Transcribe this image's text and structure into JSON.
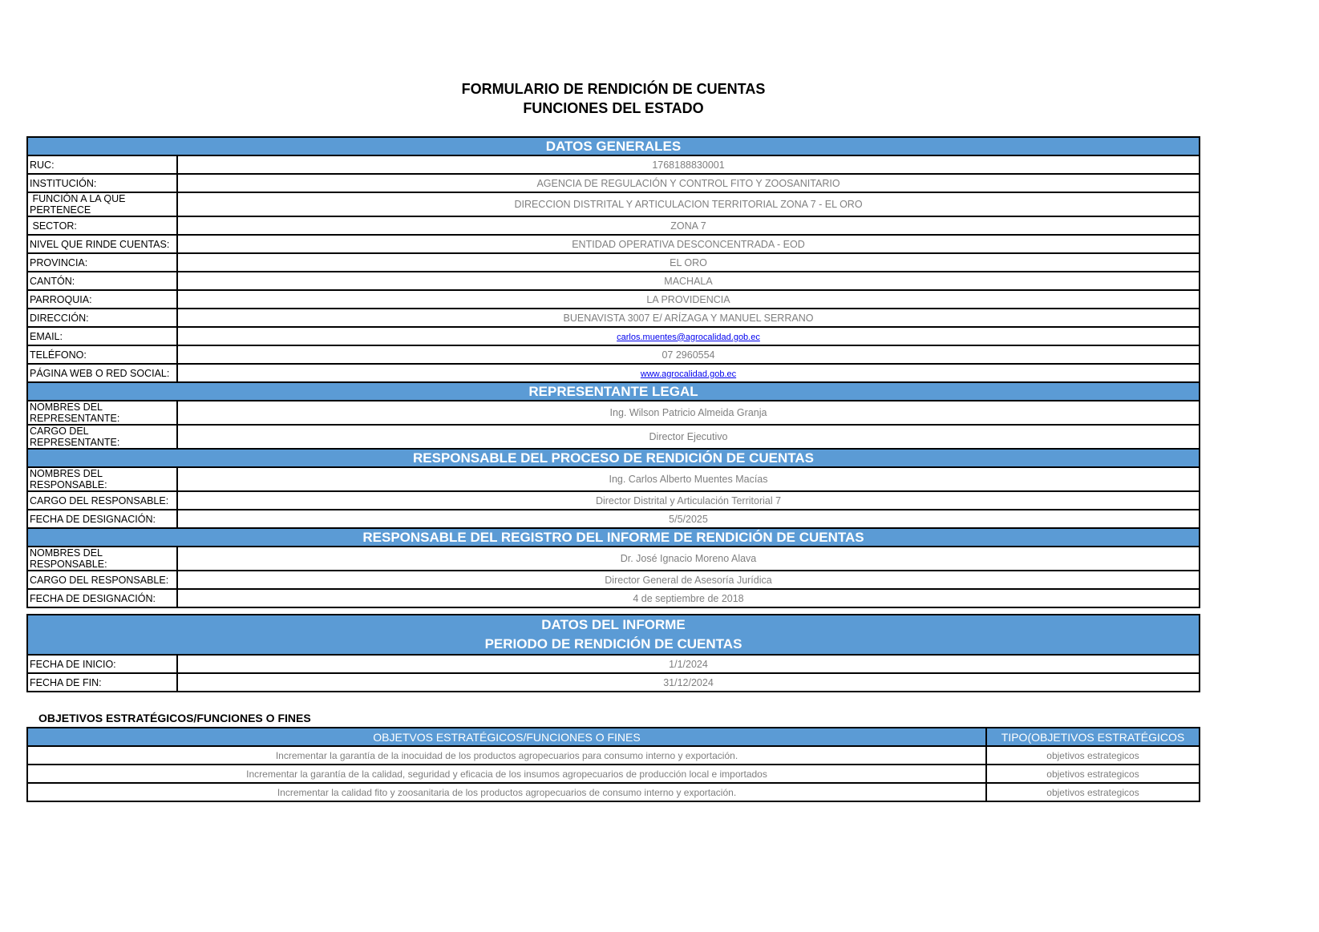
{
  "title": [
    "FORMULARIO DE RENDICIÓN DE CUENTAS",
    "FUNCIONES DEL ESTADO"
  ],
  "datos_generales": {
    "header": "DATOS GENERALES",
    "rows": [
      {
        "label": "RUC:",
        "value": "1768188830001"
      },
      {
        "label": "INSTITUCIÓN:",
        "value": "AGENCIA DE REGULACIÓN Y CONTROL FITO Y ZOOSANITARIO"
      },
      {
        "label": " FUNCIÓN A LA QUE PERTENECE",
        "value": "DIRECCION DISTRITAL Y ARTICULACION TERRITORIAL ZONA 7  - EL ORO"
      },
      {
        "label": " SECTOR:",
        "value": "ZONA 7"
      },
      {
        "label": "NIVEL QUE RINDE CUENTAS:",
        "value": "ENTIDAD OPERATIVA DESCONCENTRADA - EOD"
      },
      {
        "label": "PROVINCIA:",
        "value": "EL ORO"
      },
      {
        "label": "CANTÓN:",
        "value": "MACHALA"
      },
      {
        "label": "PARROQUIA:",
        "value": "LA PROVIDENCIA"
      },
      {
        "label": "DIRECCIÓN:",
        "value": "BUENAVISTA 3007 E/ ARÍZAGA Y MANUEL SERRANO"
      },
      {
        "label": "EMAIL:",
        "value": "carlos.muentes@agrocalidad.gob.ec"
      },
      {
        "label": "TELÉFONO:",
        "value": "07 2960554"
      },
      {
        "label": "PÁGINA WEB O RED SOCIAL:",
        "value": "www.agrocalidad.gob.ec"
      }
    ]
  },
  "representante": {
    "header": "REPRESENTANTE LEGAL",
    "rows": [
      {
        "label": "NOMBRES DEL REPRESENTANTE:",
        "value": "Ing. Wilson Patricio Almeida Granja"
      },
      {
        "label": "CARGO DEL REPRESENTANTE:",
        "value": "Director Ejecutivo"
      }
    ]
  },
  "responsable_proceso": {
    "header": "RESPONSABLE DEL PROCESO DE RENDICIÓN DE CUENTAS",
    "rows": [
      {
        "label": "NOMBRES DEL RESPONSABLE:",
        "value": "Ing. Carlos Alberto Muentes Macías"
      },
      {
        "label": "CARGO DEL RESPONSABLE:",
        "value": "Director Distrital y Articulación Territorial 7"
      },
      {
        "label": "FECHA DE DESIGNACIÓN:",
        "value": "5/5/2025"
      }
    ]
  },
  "responsable_registro": {
    "header": "RESPONSABLE DEL REGISTRO DEL INFORME DE RENDICIÓN DE CUENTAS",
    "rows": [
      {
        "label": "NOMBRES DEL RESPONSABLE:",
        "value": "Dr. José Ignacio Moreno Alava"
      },
      {
        "label": "CARGO DEL RESPONSABLE:",
        "value": "Director General de Asesoría Jurídica"
      },
      {
        "label": "FECHA DE DESIGNACIÓN:",
        "value": "4 de septiembre de 2018"
      }
    ]
  },
  "informe": {
    "header": [
      "DATOS DEL INFORME",
      "PERIODO DE RENDICIÓN DE CUENTAS"
    ],
    "rows": [
      {
        "label": "FECHA DE INICIO:",
        "value": "1/1/2024"
      },
      {
        "label": "FECHA DE FIN:",
        "value": "31/12/2024"
      }
    ]
  },
  "objetivos": {
    "title": "OBJETIVOS ESTRATÉGICOS/FUNCIONES O FINES",
    "columns": [
      "OBJETVOS ESTRATÉGICOS/FUNCIONES O FINES",
      "TIPO(OBJETIVOS ESTRATÉGICOS"
    ],
    "rows": [
      [
        "Incrementar la garantía de la inocuidad de los productos agropecuarios para consumo interno y exportación.",
        "objetivos estrategicos"
      ],
      [
        "Incrementar la garantía de la calidad, seguridad y eficacia de los insumos agropecuarios de producción local e importados",
        "objetivos estrategicos"
      ],
      [
        "Incrementar la calidad fito y zoosanitaria de los productos agropecuarios de consumo interno y exportación.",
        "objetivos estrategicos"
      ]
    ]
  },
  "colors": {
    "header_blue": "#5b9bd5",
    "value_gray": "#7f7f7f",
    "link": "#0000ee"
  }
}
